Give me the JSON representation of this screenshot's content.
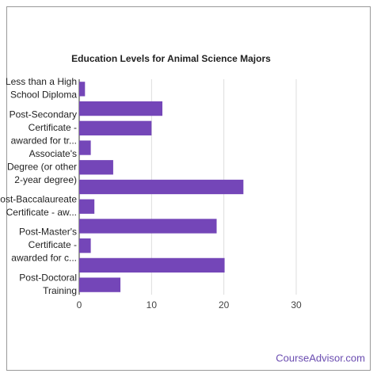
{
  "chart_data": {
    "type": "bar",
    "orientation": "horizontal",
    "title": "Education Levels for Animal Science Majors",
    "categories": [
      "Less than a High School Diploma",
      null,
      "Post-Secondary Certificate - awarded for tr...",
      null,
      "Associate's Degree (or other 2-year degree)",
      null,
      "Post-Baccalaureate Certificate - aw...",
      null,
      "Post-Master's Certificate - awarded for c...",
      null,
      "Post-Doctoral Training"
    ],
    "values": [
      0.8,
      11.5,
      10.0,
      1.6,
      4.7,
      22.7,
      2.1,
      19.0,
      1.6,
      20.1,
      5.7
    ],
    "color": "#7446b8",
    "xlim": [
      0,
      30
    ],
    "xticks": [
      0,
      10,
      20,
      30
    ],
    "grid": true,
    "source": "CourseAdvisor.com"
  }
}
